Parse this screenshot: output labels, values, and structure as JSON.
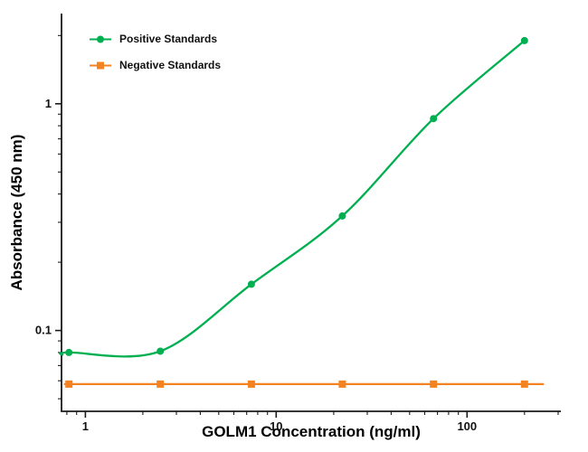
{
  "figure": {
    "background": "#ffffff"
  },
  "chart_data": {
    "type": "line",
    "title": "",
    "xlabel": "GOLM1 Concentration (ng/ml)",
    "ylabel": "Absorbance (450 nm)",
    "x_scale": "log",
    "y_scale": "log",
    "xlim": [
      0.75,
      310
    ],
    "ylim": [
      0.044,
      2.5
    ],
    "x_major_ticks": [
      1,
      10,
      100
    ],
    "x_major_tick_labels": [
      "1",
      "10",
      "100"
    ],
    "y_major_ticks": [
      0.1,
      1
    ],
    "y_major_tick_labels": [
      "0.1",
      "1"
    ],
    "grid": false,
    "legend_position": "top-left-inside",
    "axis_color": "#1a1a1a",
    "series": [
      {
        "name": "Positive Standards",
        "color": "#00b050",
        "marker": "circle",
        "smooth": true,
        "x": [
          0.82,
          2.47,
          7.41,
          22.2,
          66.7,
          200
        ],
        "y": [
          0.08,
          0.081,
          0.16,
          0.32,
          0.86,
          1.9
        ]
      },
      {
        "name": "Negative Standards",
        "color": "#f58220",
        "marker": "square",
        "smooth": false,
        "line_x_span": [
          0.78,
          250
        ],
        "x": [
          0.82,
          2.47,
          7.41,
          22.2,
          66.7,
          200
        ],
        "y": [
          0.058,
          0.058,
          0.058,
          0.058,
          0.058,
          0.058
        ]
      }
    ]
  }
}
